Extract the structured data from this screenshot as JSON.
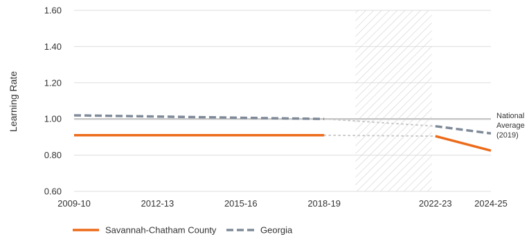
{
  "chart_data": {
    "type": "line",
    "title": "",
    "ylabel": "Learning Rate",
    "xlabel": "",
    "ylim": [
      0.6,
      1.6
    ],
    "y_ticks": [
      "1.60",
      "1.40",
      "1.20",
      "1.00",
      "0.80",
      "0.60"
    ],
    "y_tick_values": [
      1.6,
      1.4,
      1.2,
      1.0,
      0.8,
      0.6
    ],
    "x_ticks": [
      "2009-10",
      "2012-13",
      "2015-16",
      "2018-19",
      "2022-23",
      "2024-25"
    ],
    "x_tick_values": [
      2009,
      2012,
      2015,
      2018,
      2022,
      2024
    ],
    "x_range": [
      2009,
      2024
    ],
    "grid": true,
    "reference_line": {
      "value": 1.0,
      "label_lines": [
        "National",
        "Average",
        "(2019)"
      ]
    },
    "shaded_region": {
      "from": 2019,
      "to": 2021
    },
    "series": [
      {
        "name": "Savannah-Chatham County",
        "color": "#ec6b1a",
        "style": "solid",
        "segments": [
          {
            "x": [
              2009,
              2018
            ],
            "y": [
              0.91,
              0.91
            ]
          },
          {
            "x": [
              2022,
              2024
            ],
            "y": [
              0.905,
              0.825
            ]
          }
        ],
        "gap_connector": {
          "x": [
            2018,
            2022
          ],
          "y": [
            0.91,
            0.905
          ]
        }
      },
      {
        "name": "Georgia",
        "color": "#7f8a99",
        "style": "dashed",
        "segments": [
          {
            "x": [
              2009,
              2018
            ],
            "y": [
              1.02,
              1.0
            ]
          },
          {
            "x": [
              2022,
              2024
            ],
            "y": [
              0.96,
              0.92
            ]
          }
        ],
        "gap_connector": {
          "x": [
            2018,
            2022
          ],
          "y": [
            1.0,
            0.96
          ]
        }
      }
    ],
    "legend": {
      "placement": "bottom-left",
      "items": [
        "Savannah-Chatham County",
        "Georgia"
      ]
    }
  },
  "colors": {
    "grid": "#dddddd",
    "reference": "#c8c8c8",
    "hatch": "#cfcfcf",
    "connector": "#c8c8c8"
  }
}
